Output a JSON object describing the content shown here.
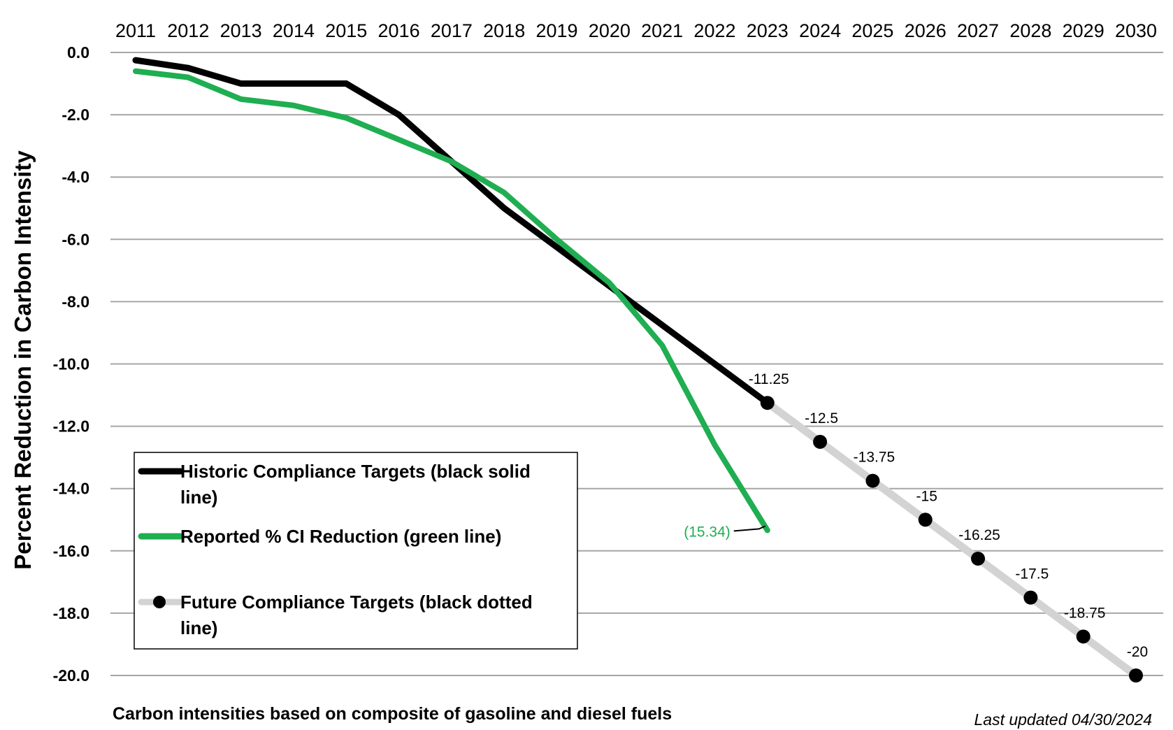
{
  "chart_data": {
    "type": "line",
    "title": "",
    "ylabel": "Percent Reduction in Carbon Intensity",
    "xlabel": "",
    "x": [
      2011,
      2012,
      2013,
      2014,
      2015,
      2016,
      2017,
      2018,
      2019,
      2020,
      2021,
      2022,
      2023,
      2024,
      2025,
      2026,
      2027,
      2028,
      2029,
      2030
    ],
    "x_tick_labels": [
      "2011",
      "2012",
      "2013",
      "2014",
      "2015",
      "2016",
      "2017",
      "2018",
      "2019",
      "2020",
      "2021",
      "2022",
      "2023",
      "2024",
      "2025",
      "2026",
      "2027",
      "2028",
      "2029",
      "2030"
    ],
    "ylim": [
      -20,
      0
    ],
    "y_tick_labels": [
      "0.0",
      "-2.0",
      "-4.0",
      "-6.0",
      "-8.0",
      "-10.0",
      "-12.0",
      "-14.0",
      "-16.0",
      "-18.0",
      "-20.0"
    ],
    "x_axis_position": "top",
    "grid": true,
    "series": [
      {
        "name": "Historic Compliance Targets (black solid line)",
        "style": "solid",
        "color": "#000000",
        "x": [
          2011,
          2012,
          2013,
          2014,
          2015,
          2016,
          2017,
          2018,
          2019,
          2020,
          2021,
          2022,
          2023
        ],
        "y": [
          -0.25,
          -0.5,
          -1.0,
          -1.0,
          -1.0,
          -2.0,
          -3.5,
          -5.0,
          -6.25,
          -7.5,
          -8.75,
          -10.0,
          -11.25
        ]
      },
      {
        "name": "Reported % CI Reduction (green line)",
        "style": "solid",
        "color": "#1fae51",
        "x": [
          2011,
          2012,
          2013,
          2014,
          2015,
          2016,
          2017,
          2018,
          2019,
          2020,
          2021,
          2022,
          2023
        ],
        "y": [
          -0.6,
          -0.8,
          -1.5,
          -1.7,
          -2.1,
          -2.8,
          -3.5,
          -4.5,
          -6.0,
          -7.4,
          -9.4,
          -12.6,
          -15.34
        ]
      },
      {
        "name": "Future Compliance Targets (black dotted line)",
        "style": "markers",
        "color": "#d3d3d3",
        "marker_color": "#000000",
        "x": [
          2023,
          2024,
          2025,
          2026,
          2027,
          2028,
          2029,
          2030
        ],
        "y": [
          -11.25,
          -12.5,
          -13.75,
          -15,
          -16.25,
          -17.5,
          -18.75,
          -20
        ]
      }
    ],
    "data_labels": [
      "-11.25",
      "-12.5",
      "-13.75",
      "-15",
      "-16.25",
      "-17.5",
      "-18.75",
      "-20"
    ],
    "annotation": {
      "text": "(15.34)",
      "x": 2023,
      "y": -15.34
    },
    "legend": {
      "placement": "bottom-left",
      "entries": [
        {
          "line1": "Historic Compliance Targets (black solid",
          "line2": "line)"
        },
        {
          "line1": "Reported % CI Reduction (green line)",
          "line2": ""
        },
        {
          "line1": "Future Compliance Targets (black dotted",
          "line2": "line)"
        }
      ]
    },
    "footnote": "Carbon intensities based on composite of gasoline and diesel fuels",
    "last_updated": "Last updated 04/30/2024"
  }
}
